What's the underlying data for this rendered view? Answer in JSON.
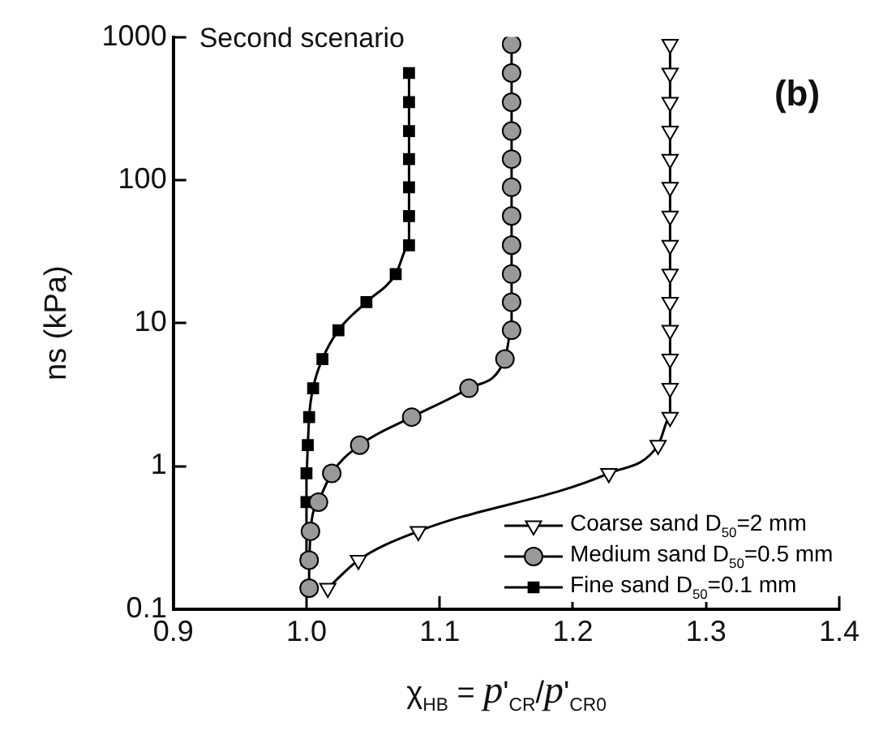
{
  "chart_data": {
    "type": "line",
    "xlabel": "χ$_{HB}$ = p'$_{CR}$/p'$_{CR0}$",
    "ylabel": "ns (kPa)",
    "annotations": [
      "Second scenario",
      "(b)"
    ],
    "log": "y",
    "grid": false,
    "legend": "bottom right",
    "xlim": [
      0.9,
      1.4
    ],
    "xticks": [
      {
        "value": 0.9,
        "label": "0.9"
      },
      {
        "value": 1,
        "label": "1.0"
      },
      {
        "value": 1.1,
        "label": "1.1"
      },
      {
        "value": 1.2,
        "label": "1.2"
      },
      {
        "value": 1.3,
        "label": "1.3"
      },
      {
        "value": 1.4,
        "label": "1.4"
      }
    ],
    "ylim": [
      0.1,
      1000
    ],
    "yticks": [
      0.1,
      1,
      10,
      100,
      1000
    ],
    "series": [
      {
        "name": "Coarse sand D$_{50}$=2 mm",
        "color": "#ffffff",
        "marker": "triangle",
        "x": [
          1.016,
          1.039,
          1.084,
          null,
          1.227,
          1.264,
          1.273,
          1.273,
          1.273,
          1.273,
          1.273,
          1.273,
          1.273,
          1.273,
          1.273,
          1.273,
          1.273,
          1.273,
          1.273,
          1.273
        ],
        "values": [
          0.14,
          0.22,
          0.35,
          null,
          0.89,
          1.4,
          2.2,
          3.5,
          5.6,
          8.9,
          14,
          22,
          35,
          56,
          89,
          140,
          220,
          350,
          560,
          890
        ]
      },
      {
        "name": "Medium sand D$_{50}$=0.5 mm",
        "color": "#999999",
        "marker": "circle",
        "x": [
          1.002,
          1.002,
          1.003,
          1.009,
          1.019,
          1.04,
          1.079,
          1.122,
          1.149,
          1.154,
          1.154,
          1.154,
          1.154,
          1.154,
          1.154,
          1.154,
          1.154,
          1.154,
          1.154,
          1.154
        ],
        "values": [
          0.14,
          0.22,
          0.35,
          0.56,
          0.89,
          1.4,
          2.2,
          3.5,
          5.6,
          8.9,
          14,
          22,
          35,
          56,
          89,
          140,
          220,
          350,
          560,
          890
        ]
      },
      {
        "name": "Fine sand D$_{50}$=0.1 mm",
        "color": "#000000",
        "marker": "square",
        "x": [
          null,
          1.0,
          null,
          1.0,
          1.0,
          1.001,
          1.002,
          1.005,
          1.012,
          1.024,
          1.045,
          1.067,
          1.077,
          1.077,
          1.077,
          1.077,
          1.077,
          1.077,
          1.077
        ],
        "values": [
          null,
          0.22,
          null,
          0.56,
          0.89,
          1.4,
          2.2,
          3.5,
          5.6,
          8.9,
          14,
          22,
          35,
          56,
          89,
          140,
          220,
          350,
          560
        ]
      }
    ]
  }
}
